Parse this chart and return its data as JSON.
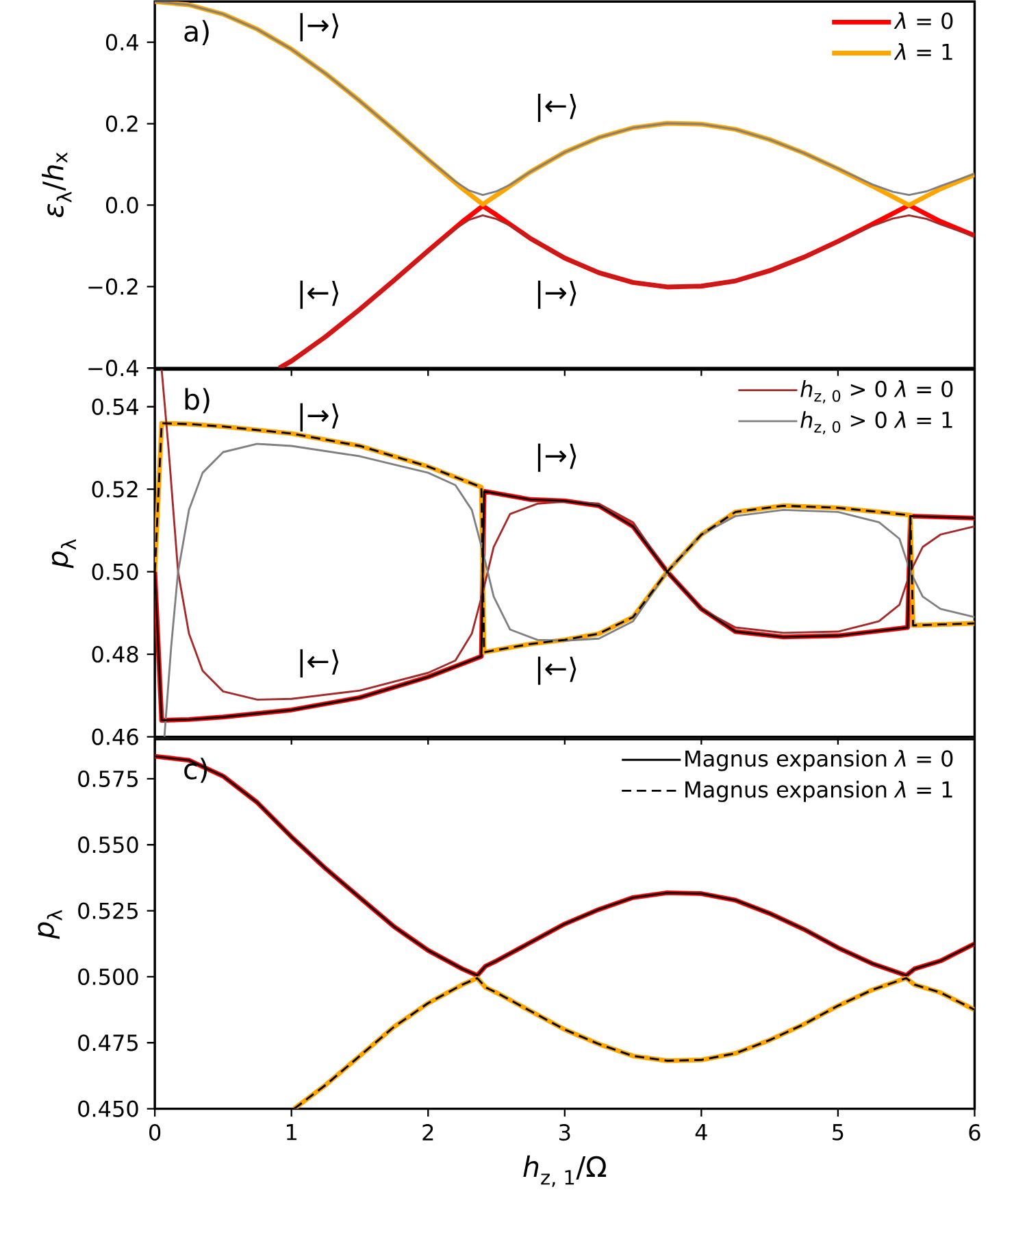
{
  "chart_data": [
    {
      "type": "line",
      "ylabel": "*ε*$_{λ}$/*h*$_{x}$",
      "xlim": [
        0,
        6
      ],
      "ylim": [
        -0.4,
        0.5
      ],
      "xticks": [
        0,
        1,
        2,
        3,
        4,
        5,
        6
      ],
      "yticks": [
        {
          "value": -0.4,
          "label": "−0.4"
        },
        {
          "value": -0.2,
          "label": "−0.2"
        },
        {
          "value": 0,
          "label": "0.0"
        },
        0.2,
        0.4
      ],
      "tick_labels": "y",
      "legend": "top right",
      "annotations": [
        "a)",
        "|→⟩",
        "|←⟩",
        "|←⟩",
        "|→⟩"
      ],
      "series": [
        {
          "name": "*λ* = 0",
          "color": "#ff0000",
          "line_style": "solid",
          "x": [
            0.91,
            1.0,
            1.25,
            1.5,
            1.75,
            2.0,
            2.25,
            2.4,
            2.5,
            2.75,
            3.0,
            3.25,
            3.5,
            3.75,
            4.0,
            4.25,
            4.5,
            4.75,
            5.0,
            5.25,
            5.52,
            5.75,
            6.0
          ],
          "values": [
            -0.4,
            -0.383,
            -0.323,
            -0.256,
            -0.185,
            -0.112,
            -0.041,
            -0.002,
            -0.024,
            -0.082,
            -0.13,
            -0.166,
            -0.19,
            -0.201,
            -0.199,
            -0.186,
            -0.161,
            -0.128,
            -0.089,
            -0.047,
            0.0,
            -0.04,
            -0.075
          ]
        },
        {
          "name": "*λ* = 1",
          "color": "#ffa500",
          "line_style": "solid",
          "x": [
            0,
            0.25,
            0.5,
            0.75,
            1.0,
            1.25,
            1.5,
            1.75,
            2.0,
            2.25,
            2.4,
            2.5,
            2.75,
            3.0,
            3.25,
            3.5,
            3.75,
            4.0,
            4.25,
            4.5,
            4.75,
            5.0,
            5.25,
            5.52,
            5.75,
            6.0
          ],
          "values": [
            0.5,
            0.492,
            0.469,
            0.432,
            0.383,
            0.323,
            0.256,
            0.185,
            0.112,
            0.041,
            0.002,
            0.024,
            0.082,
            0.13,
            0.166,
            0.19,
            0.201,
            0.199,
            0.186,
            0.161,
            0.128,
            0.089,
            0.047,
            0.0,
            0.04,
            0.075
          ]
        },
        {
          "color": "#a52a2a",
          "line_style": "solid",
          "x": [
            0.91,
            1.0,
            1.25,
            1.5,
            1.75,
            2.0,
            2.2,
            2.3,
            2.4,
            2.5,
            2.6,
            2.75,
            3.0,
            3.25,
            3.5,
            3.75,
            4.0,
            4.25,
            4.5,
            4.75,
            5.0,
            5.25,
            5.4,
            5.52,
            5.65,
            5.75,
            6.0
          ],
          "values": [
            -0.4,
            -0.383,
            -0.323,
            -0.256,
            -0.185,
            -0.113,
            -0.058,
            -0.036,
            -0.025,
            -0.034,
            -0.05,
            -0.082,
            -0.13,
            -0.166,
            -0.19,
            -0.201,
            -0.199,
            -0.186,
            -0.161,
            -0.128,
            -0.09,
            -0.051,
            -0.033,
            -0.025,
            -0.034,
            -0.047,
            -0.077
          ]
        },
        {
          "color": "#808080",
          "line_style": "solid",
          "x": [
            0,
            0.25,
            0.5,
            0.75,
            1.0,
            1.25,
            1.5,
            1.75,
            2.0,
            2.2,
            2.3,
            2.4,
            2.5,
            2.6,
            2.75,
            3.0,
            3.25,
            3.5,
            3.75,
            4.0,
            4.25,
            4.5,
            4.75,
            5.0,
            5.25,
            5.4,
            5.52,
            5.65,
            5.75,
            6.0
          ],
          "values": [
            0.5,
            0.492,
            0.469,
            0.432,
            0.383,
            0.323,
            0.256,
            0.185,
            0.113,
            0.058,
            0.036,
            0.025,
            0.034,
            0.05,
            0.082,
            0.13,
            0.166,
            0.19,
            0.201,
            0.199,
            0.186,
            0.161,
            0.128,
            0.09,
            0.051,
            0.033,
            0.025,
            0.034,
            0.047,
            0.077
          ]
        }
      ]
    },
    {
      "type": "line",
      "ylabel": "*p*$_{λ}$",
      "xlim": [
        0,
        6
      ],
      "ylim": [
        0.46,
        0.549
      ],
      "xticks": [
        0,
        1,
        2,
        3,
        4,
        5,
        6
      ],
      "yticks": [
        0.46,
        0.48,
        {
          "value": 0.5,
          "label": "0.50"
        },
        0.52,
        0.54
      ],
      "tick_labels": "y",
      "legend": "top right",
      "annotations": [
        "b)",
        "|→⟩",
        "|→⟩",
        "|←⟩",
        "|←⟩"
      ],
      "series": [
        {
          "color": "#ff0000",
          "line_style": "solid",
          "x": [
            0,
            0.05,
            0.25,
            0.5,
            1.0,
            1.5,
            2.0,
            2.39,
            2.41,
            2.75,
            3.0,
            3.25,
            3.5,
            3.75,
            4.0,
            4.25,
            4.6,
            5.0,
            5.51,
            5.53,
            6.0
          ],
          "values": [
            0.5,
            0.464,
            0.4642,
            0.4648,
            0.4665,
            0.4695,
            0.4745,
            0.4795,
            0.5195,
            0.5175,
            0.5172,
            0.516,
            0.511,
            0.5,
            0.491,
            0.4855,
            0.4842,
            0.4845,
            0.4865,
            0.5135,
            0.513
          ]
        },
        {
          "color": "#ffa500",
          "line_style": "solid",
          "x": [
            0,
            0.05,
            0.25,
            0.5,
            1.0,
            1.5,
            2.0,
            2.39,
            2.41,
            2.75,
            3.0,
            3.25,
            3.5,
            3.75,
            4.0,
            4.25,
            4.6,
            5.0,
            5.53,
            5.55,
            6.0
          ],
          "values": [
            0.5,
            0.536,
            0.5358,
            0.5352,
            0.5335,
            0.5305,
            0.5255,
            0.5205,
            0.4805,
            0.4825,
            0.4835,
            0.485,
            0.489,
            0.5,
            0.509,
            0.5145,
            0.516,
            0.5155,
            0.5137,
            0.487,
            0.4875
          ]
        },
        {
          "name": "*h*$_{z, 0}$ > 0   *λ* = 0",
          "color": "#a52a2a",
          "line_style": "solid",
          "x": [
            0.05,
            0.1,
            0.17,
            0.25,
            0.35,
            0.5,
            0.75,
            1.0,
            1.5,
            2.0,
            2.2,
            2.32,
            2.4,
            2.48,
            2.6,
            2.8,
            3.0,
            3.25,
            3.5,
            3.75,
            4.0,
            4.25,
            4.6,
            5.0,
            5.3,
            5.45,
            5.53,
            5.62,
            5.75,
            6.0
          ],
          "values": [
            0.549,
            0.53,
            0.5,
            0.485,
            0.476,
            0.471,
            0.469,
            0.4692,
            0.4712,
            0.4755,
            0.4785,
            0.485,
            0.495,
            0.506,
            0.514,
            0.5165,
            0.517,
            0.5165,
            0.512,
            0.5,
            0.491,
            0.4865,
            0.4852,
            0.4855,
            0.488,
            0.492,
            0.5,
            0.506,
            0.509,
            0.511
          ]
        },
        {
          "name": "*h*$_{z, 0}$ > 0   *λ* = 1",
          "color": "#808080",
          "line_style": "solid",
          "x": [
            0.07,
            0.12,
            0.17,
            0.25,
            0.35,
            0.5,
            0.75,
            1.0,
            1.5,
            2.0,
            2.2,
            2.32,
            2.4,
            2.48,
            2.6,
            2.8,
            3.0,
            3.25,
            3.5,
            3.75,
            4.0,
            4.25,
            4.6,
            5.0,
            5.3,
            5.45,
            5.53,
            5.62,
            5.75,
            6.0
          ],
          "values": [
            0.46,
            0.482,
            0.5,
            0.515,
            0.524,
            0.529,
            0.531,
            0.5305,
            0.528,
            0.524,
            0.521,
            0.515,
            0.505,
            0.494,
            0.486,
            0.4835,
            0.4833,
            0.4838,
            0.488,
            0.5,
            0.509,
            0.5135,
            0.515,
            0.5145,
            0.512,
            0.508,
            0.5,
            0.494,
            0.491,
            0.489
          ]
        },
        {
          "color": "#000000",
          "line_style": "solid",
          "x": [
            0,
            0.05,
            0.25,
            0.5,
            1.0,
            1.5,
            2.0,
            2.39,
            2.41,
            2.75,
            3.0,
            3.25,
            3.5,
            3.75,
            4.0,
            4.25,
            4.6,
            5.0,
            5.51,
            5.53,
            6.0
          ],
          "values": [
            0.5,
            0.464,
            0.4642,
            0.4648,
            0.4665,
            0.4695,
            0.4745,
            0.4795,
            0.5195,
            0.5175,
            0.5172,
            0.516,
            0.511,
            0.5,
            0.491,
            0.4855,
            0.4842,
            0.4845,
            0.4865,
            0.5135,
            0.513
          ]
        },
        {
          "color": "#000000",
          "line_style": "dashed",
          "x": [
            0,
            0.05,
            0.25,
            0.5,
            1.0,
            1.5,
            2.0,
            2.39,
            2.41,
            2.75,
            3.0,
            3.25,
            3.5,
            3.75,
            4.0,
            4.25,
            4.6,
            5.0,
            5.53,
            5.55,
            6.0
          ],
          "values": [
            0.5,
            0.536,
            0.5358,
            0.5352,
            0.5335,
            0.5305,
            0.5255,
            0.5205,
            0.4805,
            0.4825,
            0.4835,
            0.485,
            0.489,
            0.5,
            0.509,
            0.5145,
            0.516,
            0.5155,
            0.5137,
            0.487,
            0.4875
          ]
        }
      ]
    },
    {
      "type": "line",
      "ylabel": "*p*$_{λ}$",
      "xlabel": "*h*$_{z, 1}$/Ω",
      "xlim": [
        0,
        6
      ],
      "ylim": [
        0.45,
        0.59
      ],
      "xticks": [
        0,
        1,
        2,
        3,
        4,
        5,
        6
      ],
      "yticks": [
        {
          "value": 0.45,
          "label": "0.450"
        },
        0.475,
        {
          "value": 0.5,
          "label": "0.500"
        },
        0.525,
        {
          "value": 0.55,
          "label": "0.550"
        },
        0.575
      ],
      "legend": "top right",
      "annotations": [
        "c)"
      ],
      "series": [
        {
          "color": "#ff0000",
          "line_style": "solid",
          "x": [
            0,
            0.25,
            0.5,
            0.75,
            1.0,
            1.25,
            1.5,
            1.75,
            2.0,
            2.25,
            2.36,
            2.42,
            2.5,
            2.75,
            3.0,
            3.25,
            3.5,
            3.75,
            4.0,
            4.25,
            4.5,
            4.75,
            5.0,
            5.25,
            5.5,
            5.56,
            5.75,
            6.0
          ],
          "values": [
            0.5835,
            0.582,
            0.576,
            0.566,
            0.553,
            0.541,
            0.53,
            0.519,
            0.51,
            0.503,
            0.5005,
            0.504,
            0.506,
            0.513,
            0.52,
            0.5255,
            0.53,
            0.5318,
            0.5315,
            0.529,
            0.524,
            0.518,
            0.511,
            0.505,
            0.5005,
            0.503,
            0.506,
            0.5125
          ]
        },
        {
          "color": "#ffa500",
          "line_style": "solid",
          "x": [
            1.02,
            1.25,
            1.5,
            1.75,
            2.0,
            2.25,
            2.36,
            2.42,
            2.5,
            2.75,
            3.0,
            3.25,
            3.5,
            3.75,
            4.0,
            4.25,
            4.5,
            4.75,
            5.0,
            5.25,
            5.5,
            5.56,
            5.75,
            6.0
          ],
          "values": [
            0.45,
            0.459,
            0.47,
            0.481,
            0.49,
            0.497,
            0.4995,
            0.496,
            0.494,
            0.487,
            0.48,
            0.4745,
            0.47,
            0.4682,
            0.4685,
            0.471,
            0.476,
            0.482,
            0.489,
            0.495,
            0.4995,
            0.497,
            0.494,
            0.4875
          ]
        },
        {
          "name": "Magnus expansion *λ* = 0",
          "color": "#000000",
          "line_style": "solid",
          "x": [
            0,
            0.25,
            0.5,
            0.75,
            1.0,
            1.25,
            1.5,
            1.75,
            2.0,
            2.25,
            2.36,
            2.42,
            2.5,
            2.75,
            3.0,
            3.25,
            3.5,
            3.75,
            4.0,
            4.25,
            4.5,
            4.75,
            5.0,
            5.25,
            5.5,
            5.56,
            5.75,
            6.0
          ],
          "values": [
            0.5835,
            0.582,
            0.576,
            0.566,
            0.553,
            0.541,
            0.53,
            0.519,
            0.51,
            0.503,
            0.5005,
            0.504,
            0.506,
            0.513,
            0.52,
            0.5255,
            0.53,
            0.5318,
            0.5315,
            0.529,
            0.524,
            0.518,
            0.511,
            0.505,
            0.5005,
            0.503,
            0.506,
            0.5125
          ]
        },
        {
          "name": "Magnus expansion *λ* = 1",
          "color": "#000000",
          "line_style": "dashed",
          "x": [
            1.02,
            1.25,
            1.5,
            1.75,
            2.0,
            2.25,
            2.36,
            2.42,
            2.5,
            2.75,
            3.0,
            3.25,
            3.5,
            3.75,
            4.0,
            4.25,
            4.5,
            4.75,
            5.0,
            5.25,
            5.5,
            5.56,
            5.75,
            6.0
          ],
          "values": [
            0.45,
            0.459,
            0.47,
            0.481,
            0.49,
            0.497,
            0.4995,
            0.496,
            0.494,
            0.487,
            0.48,
            0.4745,
            0.47,
            0.4682,
            0.4685,
            0.471,
            0.476,
            0.482,
            0.489,
            0.495,
            0.4995,
            0.497,
            0.494,
            0.4875
          ]
        }
      ]
    }
  ]
}
